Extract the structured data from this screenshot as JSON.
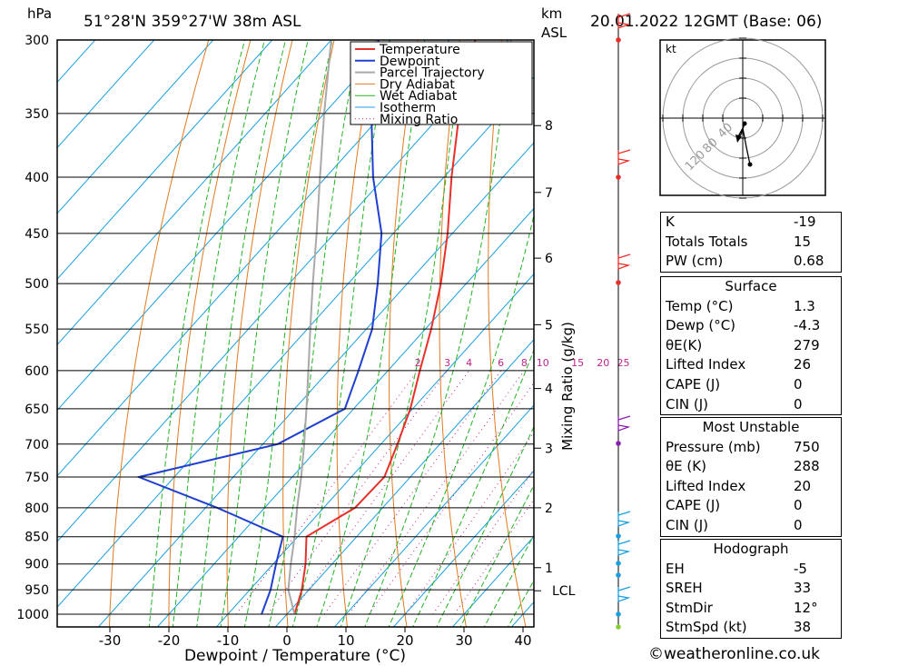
{
  "header": {
    "pressure_unit": "hPa",
    "location": "51°28'N  359°27'W  38m  ASL",
    "height_unit_km": "km",
    "height_unit_asl": "ASL",
    "datetime": "20.01.2022  12GMT  (Base: 06)"
  },
  "chart_data": {
    "type": "line",
    "title": "51°28'N  359°27'W  38m  ASL",
    "xlabel": "Dewpoint / Temperature (°C)",
    "ylabel": "hPa",
    "secondary_ylabel": "Mixing Ratio (g/kg)",
    "xlim": [
      -40,
      40
    ],
    "ylim": [
      1000,
      300
    ],
    "y_scale": "log",
    "x_ticks": [
      -30,
      -20,
      -10,
      0,
      10,
      20,
      30,
      40
    ],
    "pressure_levels": [
      300,
      350,
      400,
      450,
      500,
      550,
      600,
      650,
      700,
      750,
      800,
      850,
      900,
      950,
      1000
    ],
    "height_km_ticks": [
      {
        "label": "8",
        "p": 359
      },
      {
        "label": "7",
        "p": 413
      },
      {
        "label": "6",
        "p": 474
      },
      {
        "label": "5",
        "p": 545
      },
      {
        "label": "4",
        "p": 623
      },
      {
        "label": "3",
        "p": 706
      },
      {
        "label": "2",
        "p": 800
      },
      {
        "label": "1",
        "p": 907
      },
      {
        "label": "LCL",
        "p": 952
      }
    ],
    "mixing_ratio_labels": [
      "2",
      "3",
      "4",
      "6",
      "8",
      "10",
      "15",
      "20",
      "25"
    ],
    "mixing_ratio_values": [
      2,
      3,
      4,
      6,
      8,
      10,
      15,
      20,
      25
    ],
    "legend": [
      "Temperature",
      "Dewpoint",
      "Parcel Trajectory",
      "Dry Adiabat",
      "Wet Adiabat",
      "Isotherm",
      "Mixing Ratio"
    ],
    "legend_position": "top-right",
    "series": [
      {
        "name": "Temperature",
        "color": "#e8302a",
        "points": [
          [
            1000,
            1.3
          ],
          [
            950,
            -1.2
          ],
          [
            900,
            -4.5
          ],
          [
            850,
            -8.5
          ],
          [
            800,
            -4.7
          ],
          [
            750,
            -4.4
          ],
          [
            700,
            -7.2
          ],
          [
            650,
            -10.4
          ],
          [
            600,
            -14.6
          ],
          [
            550,
            -19.0
          ],
          [
            500,
            -24.3
          ],
          [
            450,
            -30.8
          ],
          [
            400,
            -38.7
          ],
          [
            350,
            -47.1
          ],
          [
            300,
            -55.6
          ]
        ]
      },
      {
        "name": "Dewpoint",
        "color": "#1f3fd0",
        "points": [
          [
            1000,
            -4.3
          ],
          [
            950,
            -6.5
          ],
          [
            900,
            -9.5
          ],
          [
            850,
            -12.5
          ],
          [
            800,
            -28.0
          ],
          [
            750,
            -46.0
          ],
          [
            700,
            -27.5
          ],
          [
            650,
            -21.5
          ],
          [
            600,
            -25.0
          ],
          [
            550,
            -29.0
          ],
          [
            500,
            -35.0
          ],
          [
            450,
            -42.0
          ],
          [
            400,
            -52.0
          ],
          [
            350,
            -62.0
          ],
          [
            300,
            -72.0
          ]
        ]
      },
      {
        "name": "Parcel Trajectory",
        "color": "#a9a9a9",
        "points": [
          [
            1000,
            1.3
          ],
          [
            950,
            -3.5
          ],
          [
            900,
            -7.0
          ],
          [
            850,
            -10.5
          ],
          [
            800,
            -14.5
          ],
          [
            750,
            -18.5
          ],
          [
            700,
            -23.0
          ],
          [
            650,
            -28.0
          ],
          [
            600,
            -33.5
          ],
          [
            550,
            -39.5
          ],
          [
            500,
            -46.0
          ],
          [
            450,
            -53.0
          ],
          [
            400,
            -61.0
          ],
          [
            350,
            -70.0
          ],
          [
            300,
            -80.0
          ]
        ]
      }
    ]
  },
  "hodograph": {
    "unit": "kt",
    "ring_labels": [
      "40",
      "80",
      "120"
    ]
  },
  "indices": {
    "rows": [
      {
        "label": "K",
        "value": "-19"
      },
      {
        "label": "Totals Totals",
        "value": "15"
      },
      {
        "label": "PW (cm)",
        "value": "0.68"
      }
    ]
  },
  "surface": {
    "title": "Surface",
    "rows": [
      {
        "label": "Temp (°C)",
        "value": "1.3"
      },
      {
        "label": "Dewp (°C)",
        "value": "-4.3"
      },
      {
        "label": "θE(K)",
        "value": "279"
      },
      {
        "label": "Lifted Index",
        "value": "26"
      },
      {
        "label": "CAPE (J)",
        "value": "0"
      },
      {
        "label": "CIN (J)",
        "value": "0"
      }
    ]
  },
  "most_unstable": {
    "title": "Most Unstable",
    "rows": [
      {
        "label": "Pressure (mb)",
        "value": "750"
      },
      {
        "label": "θE (K)",
        "value": "288"
      },
      {
        "label": "Lifted Index",
        "value": "20"
      },
      {
        "label": "CAPE (J)",
        "value": "0"
      },
      {
        "label": "CIN (J)",
        "value": "0"
      }
    ]
  },
  "hodograph_box": {
    "title": "Hodograph",
    "rows": [
      {
        "label": "EH",
        "value": "-5"
      },
      {
        "label": "SREH",
        "value": "33"
      },
      {
        "label": "StmDir",
        "value": "12°"
      },
      {
        "label": "StmSpd (kt)",
        "value": "38"
      }
    ]
  },
  "footer": {
    "copyright": "©weatheronline.co.uk"
  }
}
